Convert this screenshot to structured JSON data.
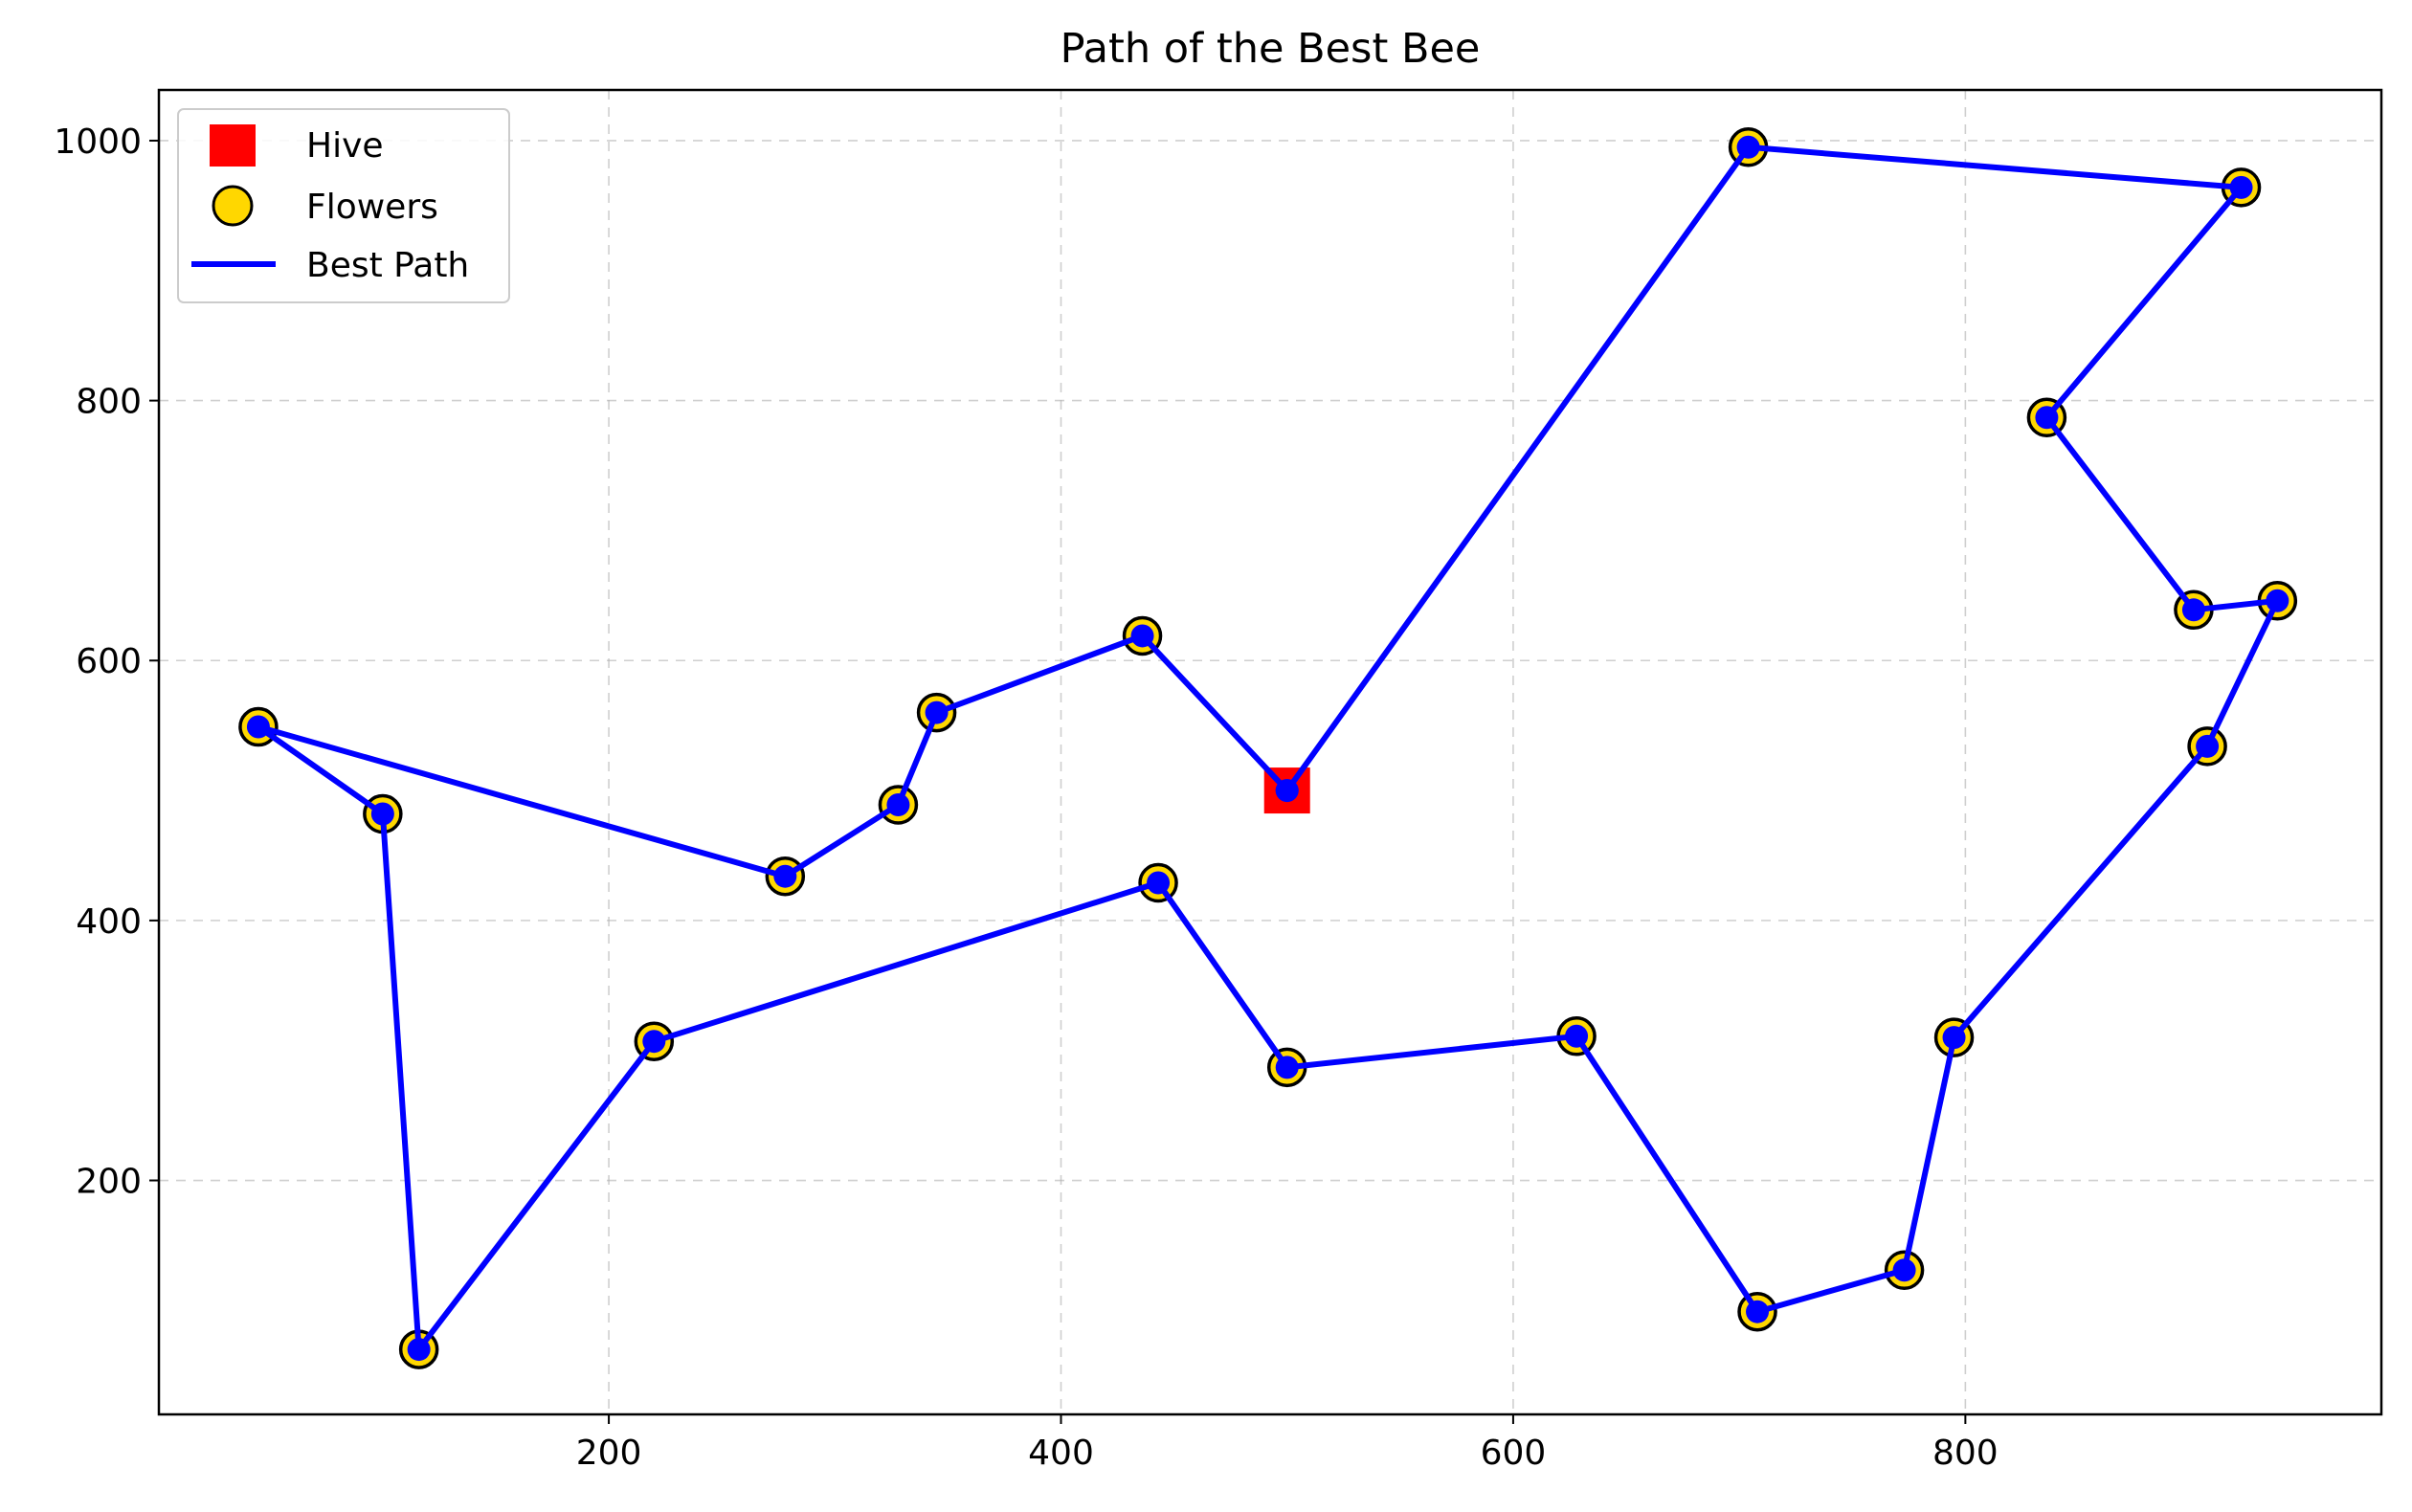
{
  "chart_data": {
    "type": "scatter",
    "title": "Path of the Best Bee",
    "xlabel": "",
    "ylabel": "",
    "xlim": [
      1,
      984
    ],
    "ylim": [
      20,
      1039
    ],
    "x_ticks": [
      200,
      400,
      600,
      800
    ],
    "y_ticks": [
      200,
      400,
      600,
      800,
      1000
    ],
    "grid": true,
    "legend_position": "top-left",
    "hive": {
      "name": "Hive",
      "x": 500,
      "y": 500,
      "color": "#ff0000",
      "marker": "square"
    },
    "flowers": {
      "name": "Flowers",
      "color": "#ffd700",
      "edge_color": "#000000",
      "marker": "circle",
      "points": [
        [
          704,
          995
        ],
        [
          922,
          964
        ],
        [
          836,
          787
        ],
        [
          901,
          639
        ],
        [
          938,
          646
        ],
        [
          907,
          534
        ],
        [
          795,
          310
        ],
        [
          773,
          131
        ],
        [
          708,
          99
        ],
        [
          628,
          311
        ],
        [
          500,
          287
        ],
        [
          443,
          429
        ],
        [
          220,
          307
        ],
        [
          116,
          70
        ],
        [
          100,
          482
        ],
        [
          45,
          549
        ],
        [
          278,
          434
        ],
        [
          328,
          489
        ],
        [
          345,
          560
        ],
        [
          436,
          619
        ]
      ]
    },
    "best_path": {
      "name": "Best Path",
      "color": "#0000ff",
      "points": [
        [
          500,
          500
        ],
        [
          704,
          995
        ],
        [
          922,
          964
        ],
        [
          836,
          787
        ],
        [
          901,
          639
        ],
        [
          938,
          646
        ],
        [
          907,
          534
        ],
        [
          795,
          310
        ],
        [
          773,
          131
        ],
        [
          708,
          99
        ],
        [
          628,
          311
        ],
        [
          500,
          287
        ],
        [
          443,
          429
        ],
        [
          220,
          307
        ],
        [
          116,
          70
        ],
        [
          100,
          482
        ],
        [
          45,
          549
        ],
        [
          278,
          434
        ],
        [
          328,
          489
        ],
        [
          345,
          560
        ],
        [
          436,
          619
        ],
        [
          500,
          500
        ]
      ]
    }
  }
}
